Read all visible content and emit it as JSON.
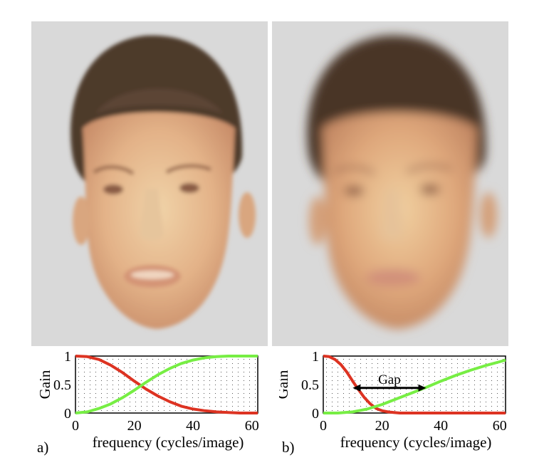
{
  "figure": {
    "panel_a": {
      "letter": "a)"
    },
    "panel_b": {
      "letter": "b)"
    }
  },
  "colors": {
    "lowpass_curve": "#dd3322",
    "highpass_curve": "#77ee44",
    "arrow": "#000000",
    "background": "#d9d9d9"
  },
  "chart_data": [
    {
      "type": "line",
      "panel": "a",
      "xlabel": "frequency (cycles/image)",
      "ylabel": "Gain",
      "xlim": [
        0,
        62
      ],
      "ylim": [
        0,
        1
      ],
      "x_ticks": [
        "0",
        "20",
        "40",
        "60"
      ],
      "y_ticks": [
        "0",
        "0.5",
        "1"
      ],
      "grid": true,
      "series": [
        {
          "color": "#dd3322",
          "x": [
            0,
            4,
            8,
            12,
            16,
            20,
            24,
            28,
            32,
            36,
            40,
            44,
            48,
            52,
            56,
            60,
            62
          ],
          "values": [
            1.0,
            0.99,
            0.94,
            0.84,
            0.71,
            0.56,
            0.42,
            0.3,
            0.2,
            0.12,
            0.07,
            0.04,
            0.02,
            0.01,
            0.0,
            0.0,
            0.0
          ]
        },
        {
          "color": "#77ee44",
          "x": [
            0,
            4,
            8,
            12,
            16,
            20,
            24,
            28,
            32,
            36,
            40,
            44,
            48,
            52,
            56,
            60,
            62
          ],
          "values": [
            0.0,
            0.02,
            0.08,
            0.16,
            0.27,
            0.4,
            0.54,
            0.67,
            0.78,
            0.87,
            0.93,
            0.97,
            0.99,
            1.0,
            1.0,
            1.0,
            1.0
          ]
        }
      ]
    },
    {
      "type": "line",
      "panel": "b",
      "xlabel": "frequency (cycles/image)",
      "ylabel": "Gain",
      "xlim": [
        0,
        62
      ],
      "ylim": [
        0,
        1
      ],
      "x_ticks": [
        "0",
        "20",
        "40",
        "60"
      ],
      "y_ticks": [
        "0",
        "0.5",
        "1"
      ],
      "grid": true,
      "annotations": [
        {
          "text": "Gap",
          "x_start": 10,
          "x_end": 35,
          "y": 0.44
        }
      ],
      "series": [
        {
          "color": "#dd3322",
          "x": [
            0,
            2,
            4,
            6,
            8,
            10,
            12,
            14,
            16,
            18,
            20,
            22,
            24,
            26,
            28,
            30,
            62
          ],
          "values": [
            1.0,
            0.99,
            0.94,
            0.85,
            0.72,
            0.56,
            0.41,
            0.27,
            0.16,
            0.08,
            0.04,
            0.02,
            0.01,
            0.0,
            0.0,
            0.0,
            0.0
          ]
        },
        {
          "color": "#77ee44",
          "x": [
            0,
            5,
            10,
            15,
            20,
            25,
            30,
            35,
            40,
            45,
            50,
            55,
            60,
            62
          ],
          "values": [
            0.0,
            0.0,
            0.02,
            0.07,
            0.15,
            0.25,
            0.35,
            0.45,
            0.56,
            0.66,
            0.75,
            0.83,
            0.9,
            0.93
          ]
        }
      ]
    }
  ]
}
